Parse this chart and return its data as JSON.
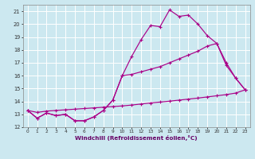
{
  "xlabel": "Windchill (Refroidissement éolien,°C)",
  "bg_color": "#cce8f0",
  "grid_color": "#ffffff",
  "line_color": "#aa0088",
  "xlim": [
    -0.5,
    23.5
  ],
  "ylim": [
    12,
    21.5
  ],
  "xticks": [
    0,
    1,
    2,
    3,
    4,
    5,
    6,
    7,
    8,
    9,
    10,
    11,
    12,
    13,
    14,
    15,
    16,
    17,
    18,
    19,
    20,
    21,
    22,
    23
  ],
  "yticks": [
    12,
    13,
    14,
    15,
    16,
    17,
    18,
    19,
    20,
    21
  ],
  "series1_x": [
    0,
    1,
    2,
    3,
    4,
    5,
    6,
    7,
    8,
    9,
    10,
    11,
    12,
    13,
    14,
    15,
    16,
    17,
    18,
    19,
    20,
    21,
    22,
    23
  ],
  "series1_y": [
    13.3,
    12.7,
    13.1,
    12.9,
    13.0,
    12.5,
    12.5,
    12.8,
    13.3,
    14.1,
    16.0,
    17.5,
    18.8,
    19.9,
    19.8,
    21.1,
    20.6,
    20.7,
    20.0,
    19.1,
    18.5,
    16.8,
    15.8,
    14.9
  ],
  "series2_x": [
    0,
    1,
    2,
    3,
    4,
    5,
    6,
    7,
    8,
    9,
    10,
    11,
    12,
    13,
    14,
    15,
    16,
    17,
    18,
    19,
    20,
    21,
    22,
    23
  ],
  "series2_y": [
    13.3,
    12.7,
    13.1,
    12.9,
    13.0,
    12.5,
    12.5,
    12.8,
    13.3,
    14.1,
    16.0,
    16.1,
    16.3,
    16.5,
    16.7,
    17.0,
    17.3,
    17.6,
    17.9,
    18.3,
    18.5,
    17.0,
    15.8,
    14.9
  ],
  "series3_x": [
    0,
    1,
    2,
    3,
    4,
    5,
    6,
    7,
    8,
    9,
    10,
    11,
    12,
    13,
    14,
    15,
    16,
    17,
    18,
    19,
    20,
    21,
    22,
    23
  ],
  "series3_y": [
    13.3,
    13.15,
    13.25,
    13.3,
    13.35,
    13.4,
    13.45,
    13.5,
    13.55,
    13.6,
    13.65,
    13.72,
    13.8,
    13.88,
    13.95,
    14.02,
    14.1,
    14.18,
    14.26,
    14.35,
    14.44,
    14.53,
    14.65,
    14.9
  ]
}
